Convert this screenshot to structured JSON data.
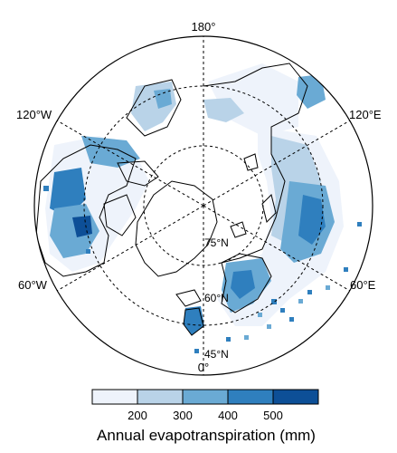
{
  "map": {
    "projection": "north-polar-stereographic",
    "longitude_labels": {
      "top": "180°",
      "upper_left": "120°W",
      "upper_right": "120°E",
      "lower_left": "60°W",
      "lower_right": "60°E",
      "bottom": "0°"
    },
    "latitude_labels": {
      "inner": "75°N",
      "middle": "60°N",
      "outer": "45°N"
    },
    "field": "Annual evapotranspiration",
    "colors": {
      "bin_lt_200": "#eef3fb",
      "bin_200_300": "#b9d3e8",
      "bin_300_400": "#6aaad4",
      "bin_400_500": "#2f7fbe",
      "bin_gt_500": "#0d4f97",
      "land_outline": "#000000",
      "grid_dashed": "#000000"
    }
  },
  "colorbar": {
    "ticks": [
      "200",
      "300",
      "400",
      "500"
    ],
    "title": "Annual evapotranspiration (mm)"
  }
}
